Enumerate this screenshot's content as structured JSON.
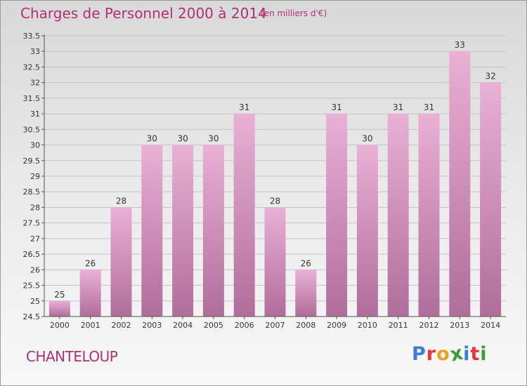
{
  "header": {
    "title": "Charges de Personnel 2000 à 2014",
    "unit_note": "(en milliers d'€)"
  },
  "footer": {
    "commune": "CHANTELOUP",
    "brand_letters": [
      "P",
      "r",
      "o",
      "x",
      "i",
      "t",
      "i"
    ],
    "brand_colors": [
      "#3a7fd5",
      "#e8343a",
      "#f0a020",
      "#3a9a3a",
      "#3a7fd5",
      "#e8343a",
      "#3a9a3a"
    ]
  },
  "colors": {
    "bar_top": "#eab0d6",
    "bar_bottom": "#b06e9a",
    "text": "#b03070",
    "axis": "#555555"
  },
  "chart_data": {
    "type": "bar",
    "title": "Charges de Personnel 2000 à 2014",
    "subtitle": "(en milliers d'€)",
    "categories": [
      "2000",
      "2001",
      "2002",
      "2003",
      "2004",
      "2005",
      "2006",
      "2007",
      "2008",
      "2009",
      "2010",
      "2011",
      "2012",
      "2013",
      "2014"
    ],
    "values": [
      25,
      26,
      28,
      30,
      30,
      30,
      31,
      28,
      26,
      31,
      30,
      31,
      31,
      33,
      32
    ],
    "data_labels": [
      "25",
      "26",
      "28",
      "30",
      "30",
      "30",
      "31",
      "28",
      "26",
      "31",
      "30",
      "31",
      "31",
      "33",
      "32"
    ],
    "ylim": [
      24.5,
      33.5
    ],
    "y_ticks": [
      24.5,
      25,
      25.5,
      26,
      26.5,
      27,
      27.5,
      28,
      28.5,
      29,
      29.5,
      30,
      30.5,
      31,
      31.5,
      32,
      32.5,
      33,
      33.5
    ],
    "y_tick_labels": [
      "24.5",
      "25",
      "25.5",
      "26",
      "26.5",
      "27",
      "27.5",
      "28",
      "28.5",
      "29",
      "29.5",
      "30",
      "30.5",
      "31",
      "31.5",
      "32",
      "32.5",
      "33",
      "33.5"
    ],
    "grid": true,
    "legend": "none"
  }
}
